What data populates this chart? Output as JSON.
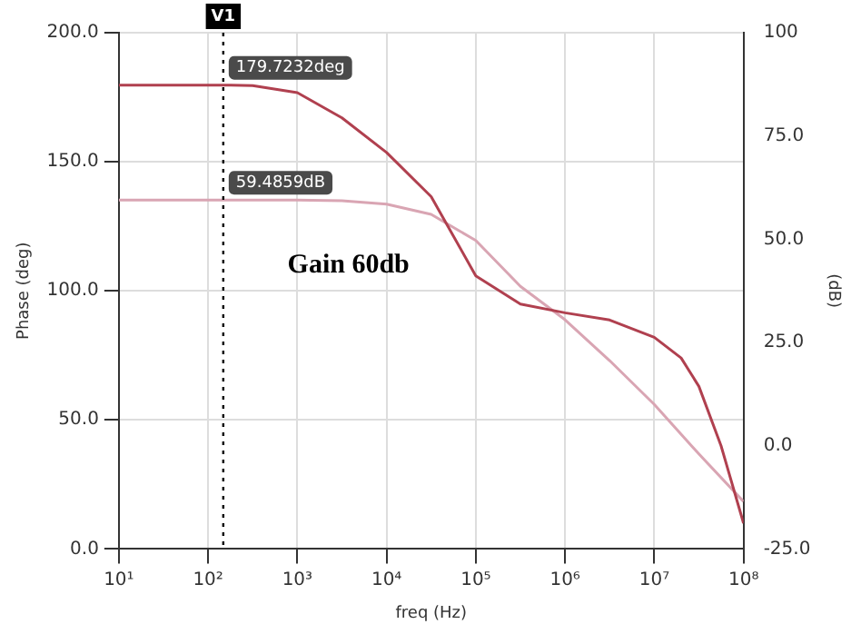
{
  "chart_data": {
    "type": "line",
    "xlabel": "freq (Hz)",
    "ylabel": "Phase (deg)",
    "y2label": "(dB)",
    "annotations": [
      "Gain 60db"
    ],
    "log": "x",
    "grid": true,
    "legend": false,
    "marker": "none",
    "line_style": "solid",
    "xlim": [
      10,
      100000000
    ],
    "xticks": [
      {
        "value": 10,
        "label": "10¹"
      },
      {
        "value": 100,
        "label": "10²"
      },
      {
        "value": 1000,
        "label": "10³"
      },
      {
        "value": 10000,
        "label": "10⁴"
      },
      {
        "value": 100000,
        "label": "10⁵"
      },
      {
        "value": 1000000,
        "label": "10⁶"
      },
      {
        "value": 10000000,
        "label": "10⁷"
      },
      {
        "value": 100000000,
        "label": "10⁸"
      }
    ],
    "ylim": [
      0,
      200
    ],
    "yticks": [
      {
        "value": 0,
        "label": "0.0"
      },
      {
        "value": 50,
        "label": "50.0"
      },
      {
        "value": 100,
        "label": "100.0"
      },
      {
        "value": 150,
        "label": "150.0"
      },
      {
        "value": 200,
        "label": "200.0"
      }
    ],
    "y2lim": [
      -25,
      100
    ],
    "y2ticks": [
      {
        "value": -25,
        "label": "-25.0"
      },
      {
        "value": 0,
        "label": "0.0"
      },
      {
        "value": 25,
        "label": "25.0"
      },
      {
        "value": 50,
        "label": "50.0"
      },
      {
        "value": 75,
        "label": "75.0"
      },
      100
    ],
    "ref_lines": [
      {
        "axis": "x",
        "value": 148,
        "label": "V1",
        "color": "#000000",
        "line_style": "dotted"
      }
    ],
    "series": [
      {
        "color": "#b0404f",
        "x": [
          10,
          148,
          316,
          1000,
          3162,
          10000,
          31623,
          100000,
          316228,
          1000000,
          3162278,
          10000000,
          20000000,
          31623000,
          56000000,
          100000000
        ],
        "values": [
          179.7,
          179.7232,
          179.5,
          176.8,
          167,
          153.6,
          136.5,
          105.8,
          94.9,
          91.5,
          88.7,
          82,
          74,
          63,
          40,
          10
        ],
        "value_labels": [
          null,
          "179.7232deg",
          null,
          null,
          null,
          null,
          null,
          null,
          null,
          null,
          null,
          null,
          null,
          null,
          null,
          null
        ]
      },
      {
        "color": "#d9a5b3",
        "axis": "y2",
        "x": [
          10,
          148,
          1000,
          3162,
          10000,
          31623,
          100000,
          316228,
          1000000,
          3162278,
          10000000,
          31623000,
          100000000
        ],
        "values": [
          59.5,
          59.4859,
          59.5,
          59.3,
          58.5,
          56,
          49.7,
          38.6,
          30.5,
          20.6,
          10,
          -2,
          -13.5
        ],
        "value_labels": [
          null,
          "59.4859dB",
          null,
          null,
          null,
          null,
          null,
          null,
          null,
          null,
          null,
          null,
          null
        ]
      }
    ]
  }
}
